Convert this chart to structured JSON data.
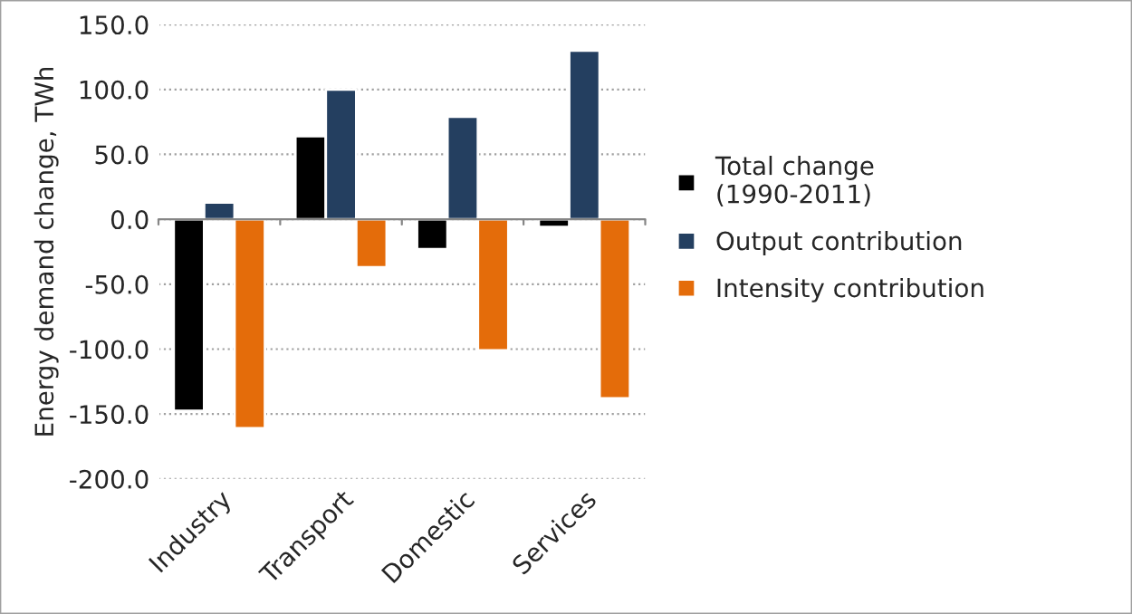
{
  "chart_data": {
    "type": "bar",
    "ylabel": "Energy demand change, TWh",
    "categories": [
      "Industry",
      "Transport",
      "Domestic",
      "Services"
    ],
    "series": [
      {
        "name": "Total change\n(1990-2011)",
        "color": "#000000",
        "values": [
          -147.5,
          64,
          -23,
          -6
        ]
      },
      {
        "name": "Output contribution",
        "color": "#243f60",
        "values": [
          13,
          100,
          79,
          130
        ]
      },
      {
        "name": "Intensity contribution",
        "color": "#e46c0a",
        "values": [
          -161,
          -37,
          -101,
          -138
        ]
      }
    ],
    "ylim": [
      -200,
      150
    ],
    "yticks": [
      {
        "value": -200,
        "label": "-200.0"
      },
      {
        "value": -150,
        "label": "-150.0"
      },
      {
        "value": -100,
        "label": "-100.0"
      },
      {
        "value": -50,
        "label": "-50.0"
      },
      {
        "value": 0,
        "label": "0.0"
      },
      {
        "value": 50,
        "label": "50.0"
      },
      {
        "value": 100,
        "label": "100.0"
      },
      {
        "value": 150,
        "label": "150.0"
      }
    ],
    "grid": "y",
    "legend": "right"
  }
}
